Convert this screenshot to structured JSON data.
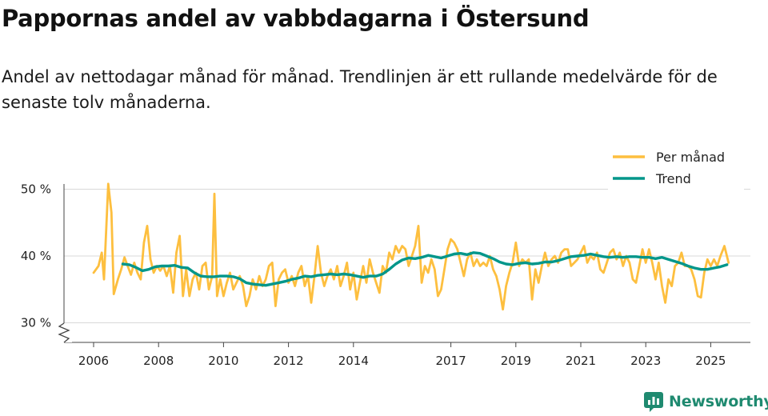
{
  "chart_data": {
    "type": "line",
    "title": "Pappornas andel av vabbdagarna i Östersund",
    "subtitle": "Andel av nettodagar månad för månad. Trendlinjen är ett rullande medelvärde för de senaste tolv månaderna.",
    "xlabel": "",
    "ylabel": "",
    "x_tick_labels": [
      "2006",
      "2008",
      "2010",
      "2012",
      "2014",
      "2017",
      "2019",
      "2021",
      "2023",
      "2025"
    ],
    "y_tick_labels": [
      "30 %",
      "40 %",
      "50 %"
    ],
    "y_ticks": [
      30,
      40,
      50
    ],
    "ylim": [
      27,
      52
    ],
    "axis_break": true,
    "grid": true,
    "legend_position": "top-right",
    "colors": {
      "per_month": "#fdbf3f",
      "trend": "#00968a",
      "grid": "#d9d9d9",
      "axis": "#444444"
    },
    "series": [
      {
        "name": "Per månad",
        "key": "per_month",
        "points": [
          [
            2006.0,
            37.5
          ],
          [
            2006.15,
            38.5
          ],
          [
            2006.25,
            40.5
          ],
          [
            2006.32,
            36.5
          ],
          [
            2006.45,
            50.8
          ],
          [
            2006.55,
            46.5
          ],
          [
            2006.62,
            34.3
          ],
          [
            2006.75,
            36.5
          ],
          [
            2006.85,
            38.0
          ],
          [
            2006.95,
            39.8
          ],
          [
            2007.05,
            38.5
          ],
          [
            2007.15,
            37.2
          ],
          [
            2007.25,
            39.0
          ],
          [
            2007.35,
            37.5
          ],
          [
            2007.45,
            36.5
          ],
          [
            2007.55,
            42.0
          ],
          [
            2007.65,
            44.5
          ],
          [
            2007.75,
            39.5
          ],
          [
            2007.85,
            37.5
          ],
          [
            2007.95,
            38.5
          ],
          [
            2008.05,
            37.8
          ],
          [
            2008.15,
            38.5
          ],
          [
            2008.25,
            37.0
          ],
          [
            2008.35,
            38.5
          ],
          [
            2008.45,
            34.5
          ],
          [
            2008.55,
            40.5
          ],
          [
            2008.65,
            43.0
          ],
          [
            2008.75,
            34.0
          ],
          [
            2008.85,
            38.0
          ],
          [
            2008.95,
            34.0
          ],
          [
            2009.05,
            36.5
          ],
          [
            2009.15,
            37.5
          ],
          [
            2009.25,
            35.0
          ],
          [
            2009.35,
            38.5
          ],
          [
            2009.45,
            39.0
          ],
          [
            2009.55,
            35.0
          ],
          [
            2009.65,
            37.0
          ],
          [
            2009.72,
            49.3
          ],
          [
            2009.8,
            34.0
          ],
          [
            2009.9,
            36.5
          ],
          [
            2010.0,
            34.0
          ],
          [
            2010.1,
            36.0
          ],
          [
            2010.2,
            37.5
          ],
          [
            2010.3,
            35.0
          ],
          [
            2010.4,
            36.0
          ],
          [
            2010.5,
            37.0
          ],
          [
            2010.6,
            35.5
          ],
          [
            2010.7,
            32.5
          ],
          [
            2010.8,
            34.0
          ],
          [
            2010.9,
            36.5
          ],
          [
            2011.0,
            35.0
          ],
          [
            2011.1,
            37.0
          ],
          [
            2011.2,
            35.5
          ],
          [
            2011.3,
            36.5
          ],
          [
            2011.4,
            38.5
          ],
          [
            2011.5,
            39.0
          ],
          [
            2011.6,
            32.5
          ],
          [
            2011.7,
            36.5
          ],
          [
            2011.8,
            37.5
          ],
          [
            2011.9,
            38.0
          ],
          [
            2012.0,
            36.0
          ],
          [
            2012.1,
            37.0
          ],
          [
            2012.2,
            35.5
          ],
          [
            2012.3,
            37.5
          ],
          [
            2012.4,
            38.5
          ],
          [
            2012.5,
            35.5
          ],
          [
            2012.6,
            37.0
          ],
          [
            2012.7,
            33.0
          ],
          [
            2012.8,
            37.0
          ],
          [
            2012.9,
            41.5
          ],
          [
            2013.0,
            37.5
          ],
          [
            2013.1,
            35.5
          ],
          [
            2013.2,
            37.0
          ],
          [
            2013.3,
            38.0
          ],
          [
            2013.4,
            36.5
          ],
          [
            2013.5,
            38.5
          ],
          [
            2013.6,
            35.5
          ],
          [
            2013.7,
            37.0
          ],
          [
            2013.8,
            39.0
          ],
          [
            2013.9,
            35.0
          ],
          [
            2014.0,
            37.5
          ],
          [
            2014.1,
            33.5
          ],
          [
            2014.2,
            36.0
          ],
          [
            2014.3,
            38.5
          ],
          [
            2014.4,
            36.0
          ],
          [
            2014.5,
            39.5
          ],
          [
            2014.6,
            37.5
          ],
          [
            2014.7,
            36.0
          ],
          [
            2014.8,
            34.5
          ],
          [
            2014.9,
            38.5
          ],
          [
            2015.0,
            37.5
          ],
          [
            2015.1,
            40.5
          ],
          [
            2015.2,
            39.5
          ],
          [
            2015.3,
            41.5
          ],
          [
            2015.4,
            40.5
          ],
          [
            2015.5,
            41.5
          ],
          [
            2015.6,
            41.0
          ],
          [
            2015.7,
            38.5
          ],
          [
            2015.8,
            40.0
          ],
          [
            2015.9,
            41.5
          ],
          [
            2016.0,
            44.5
          ],
          [
            2016.1,
            36.0
          ],
          [
            2016.2,
            38.5
          ],
          [
            2016.3,
            37.5
          ],
          [
            2016.4,
            39.5
          ],
          [
            2016.5,
            38.0
          ],
          [
            2016.6,
            34.0
          ],
          [
            2016.7,
            35.0
          ],
          [
            2016.8,
            38.0
          ],
          [
            2016.9,
            41.0
          ],
          [
            2017.0,
            42.5
          ],
          [
            2017.1,
            42.0
          ],
          [
            2017.2,
            41.0
          ],
          [
            2017.3,
            39.0
          ],
          [
            2017.4,
            37.0
          ],
          [
            2017.5,
            39.5
          ],
          [
            2017.6,
            40.5
          ],
          [
            2017.7,
            38.5
          ],
          [
            2017.8,
            39.5
          ],
          [
            2017.9,
            38.5
          ],
          [
            2018.0,
            39.0
          ],
          [
            2018.1,
            38.5
          ],
          [
            2018.2,
            40.0
          ],
          [
            2018.3,
            38.0
          ],
          [
            2018.4,
            37.0
          ],
          [
            2018.5,
            35.0
          ],
          [
            2018.6,
            32.0
          ],
          [
            2018.7,
            35.5
          ],
          [
            2018.8,
            37.5
          ],
          [
            2018.9,
            39.0
          ],
          [
            2019.0,
            42.0
          ],
          [
            2019.1,
            38.5
          ],
          [
            2019.2,
            39.5
          ],
          [
            2019.3,
            39.0
          ],
          [
            2019.4,
            39.5
          ],
          [
            2019.5,
            33.5
          ],
          [
            2019.6,
            38.0
          ],
          [
            2019.7,
            36.0
          ],
          [
            2019.8,
            38.5
          ],
          [
            2019.9,
            40.5
          ],
          [
            2020.0,
            38.5
          ],
          [
            2020.1,
            39.5
          ],
          [
            2020.2,
            40.0
          ],
          [
            2020.3,
            39.0
          ],
          [
            2020.4,
            40.5
          ],
          [
            2020.5,
            41.0
          ],
          [
            2020.6,
            41.0
          ],
          [
            2020.7,
            38.5
          ],
          [
            2020.8,
            39.0
          ],
          [
            2020.9,
            39.5
          ],
          [
            2021.0,
            40.5
          ],
          [
            2021.1,
            41.5
          ],
          [
            2021.2,
            39.0
          ],
          [
            2021.3,
            40.0
          ],
          [
            2021.4,
            39.5
          ],
          [
            2021.5,
            40.5
          ],
          [
            2021.6,
            38.0
          ],
          [
            2021.7,
            37.5
          ],
          [
            2021.8,
            39.0
          ],
          [
            2021.9,
            40.5
          ],
          [
            2022.0,
            41.0
          ],
          [
            2022.1,
            39.5
          ],
          [
            2022.2,
            40.5
          ],
          [
            2022.3,
            38.5
          ],
          [
            2022.4,
            40.0
          ],
          [
            2022.5,
            39.0
          ],
          [
            2022.6,
            36.5
          ],
          [
            2022.7,
            36.0
          ],
          [
            2022.8,
            38.5
          ],
          [
            2022.9,
            41.0
          ],
          [
            2023.0,
            39.0
          ],
          [
            2023.1,
            41.0
          ],
          [
            2023.2,
            39.0
          ],
          [
            2023.3,
            36.5
          ],
          [
            2023.4,
            39.0
          ],
          [
            2023.5,
            35.5
          ],
          [
            2023.6,
            33.0
          ],
          [
            2023.7,
            36.5
          ],
          [
            2023.8,
            35.5
          ],
          [
            2023.9,
            38.5
          ],
          [
            2024.0,
            39.0
          ],
          [
            2024.1,
            40.5
          ],
          [
            2024.2,
            38.5
          ],
          [
            2024.3,
            38.5
          ],
          [
            2024.4,
            38.0
          ],
          [
            2024.5,
            36.5
          ],
          [
            2024.6,
            34.0
          ],
          [
            2024.7,
            33.8
          ],
          [
            2024.8,
            37.5
          ],
          [
            2024.9,
            39.5
          ],
          [
            2025.0,
            38.5
          ],
          [
            2025.1,
            39.5
          ],
          [
            2025.2,
            38.5
          ],
          [
            2025.3,
            40.0
          ],
          [
            2025.42,
            41.5
          ],
          [
            2025.55,
            39.0
          ]
        ]
      },
      {
        "name": "Trend",
        "key": "trend",
        "points": [
          [
            2006.9,
            38.8
          ],
          [
            2007.1,
            38.7
          ],
          [
            2007.3,
            38.3
          ],
          [
            2007.5,
            37.8
          ],
          [
            2007.7,
            38.0
          ],
          [
            2007.9,
            38.4
          ],
          [
            2008.1,
            38.5
          ],
          [
            2008.3,
            38.5
          ],
          [
            2008.5,
            38.6
          ],
          [
            2008.7,
            38.3
          ],
          [
            2008.9,
            38.2
          ],
          [
            2009.1,
            37.5
          ],
          [
            2009.3,
            37.0
          ],
          [
            2009.5,
            36.9
          ],
          [
            2009.7,
            36.9
          ],
          [
            2009.9,
            37.0
          ],
          [
            2010.1,
            37.0
          ],
          [
            2010.3,
            36.9
          ],
          [
            2010.5,
            36.6
          ],
          [
            2010.7,
            36.0
          ],
          [
            2010.9,
            35.8
          ],
          [
            2011.1,
            35.7
          ],
          [
            2011.3,
            35.6
          ],
          [
            2011.5,
            35.8
          ],
          [
            2011.7,
            36.0
          ],
          [
            2011.9,
            36.2
          ],
          [
            2012.1,
            36.5
          ],
          [
            2012.3,
            36.7
          ],
          [
            2012.5,
            37.0
          ],
          [
            2012.7,
            36.9
          ],
          [
            2012.9,
            37.1
          ],
          [
            2013.1,
            37.2
          ],
          [
            2013.3,
            37.3
          ],
          [
            2013.5,
            37.2
          ],
          [
            2013.7,
            37.3
          ],
          [
            2013.9,
            37.2
          ],
          [
            2014.1,
            37.0
          ],
          [
            2014.3,
            36.8
          ],
          [
            2014.5,
            37.0
          ],
          [
            2014.7,
            37.0
          ],
          [
            2014.9,
            37.3
          ],
          [
            2015.1,
            38.0
          ],
          [
            2015.3,
            38.8
          ],
          [
            2015.5,
            39.4
          ],
          [
            2015.7,
            39.7
          ],
          [
            2015.9,
            39.6
          ],
          [
            2016.1,
            39.8
          ],
          [
            2016.3,
            40.1
          ],
          [
            2016.5,
            39.9
          ],
          [
            2016.7,
            39.7
          ],
          [
            2016.9,
            40.0
          ],
          [
            2017.1,
            40.3
          ],
          [
            2017.3,
            40.4
          ],
          [
            2017.5,
            40.2
          ],
          [
            2017.7,
            40.5
          ],
          [
            2017.9,
            40.4
          ],
          [
            2018.1,
            40.0
          ],
          [
            2018.3,
            39.6
          ],
          [
            2018.5,
            39.1
          ],
          [
            2018.7,
            38.8
          ],
          [
            2018.9,
            38.7
          ],
          [
            2019.1,
            38.9
          ],
          [
            2019.3,
            39.0
          ],
          [
            2019.5,
            38.8
          ],
          [
            2019.7,
            38.9
          ],
          [
            2019.9,
            39.1
          ],
          [
            2020.1,
            39.1
          ],
          [
            2020.3,
            39.3
          ],
          [
            2020.5,
            39.6
          ],
          [
            2020.7,
            39.9
          ],
          [
            2020.9,
            40.0
          ],
          [
            2021.1,
            40.1
          ],
          [
            2021.3,
            40.3
          ],
          [
            2021.5,
            40.1
          ],
          [
            2021.7,
            39.9
          ],
          [
            2021.9,
            39.8
          ],
          [
            2022.1,
            39.9
          ],
          [
            2022.3,
            39.8
          ],
          [
            2022.5,
            39.9
          ],
          [
            2022.7,
            39.9
          ],
          [
            2022.9,
            39.8
          ],
          [
            2023.1,
            39.8
          ],
          [
            2023.3,
            39.6
          ],
          [
            2023.5,
            39.8
          ],
          [
            2023.7,
            39.5
          ],
          [
            2023.9,
            39.2
          ],
          [
            2024.1,
            38.9
          ],
          [
            2024.3,
            38.5
          ],
          [
            2024.5,
            38.2
          ],
          [
            2024.7,
            38.0
          ],
          [
            2024.9,
            38.0
          ],
          [
            2025.1,
            38.2
          ],
          [
            2025.3,
            38.4
          ],
          [
            2025.5,
            38.7
          ]
        ]
      }
    ]
  },
  "brand": {
    "name": "Newsworthy",
    "color": "#1f8a70",
    "icon": "newsworthy-logo-icon"
  }
}
